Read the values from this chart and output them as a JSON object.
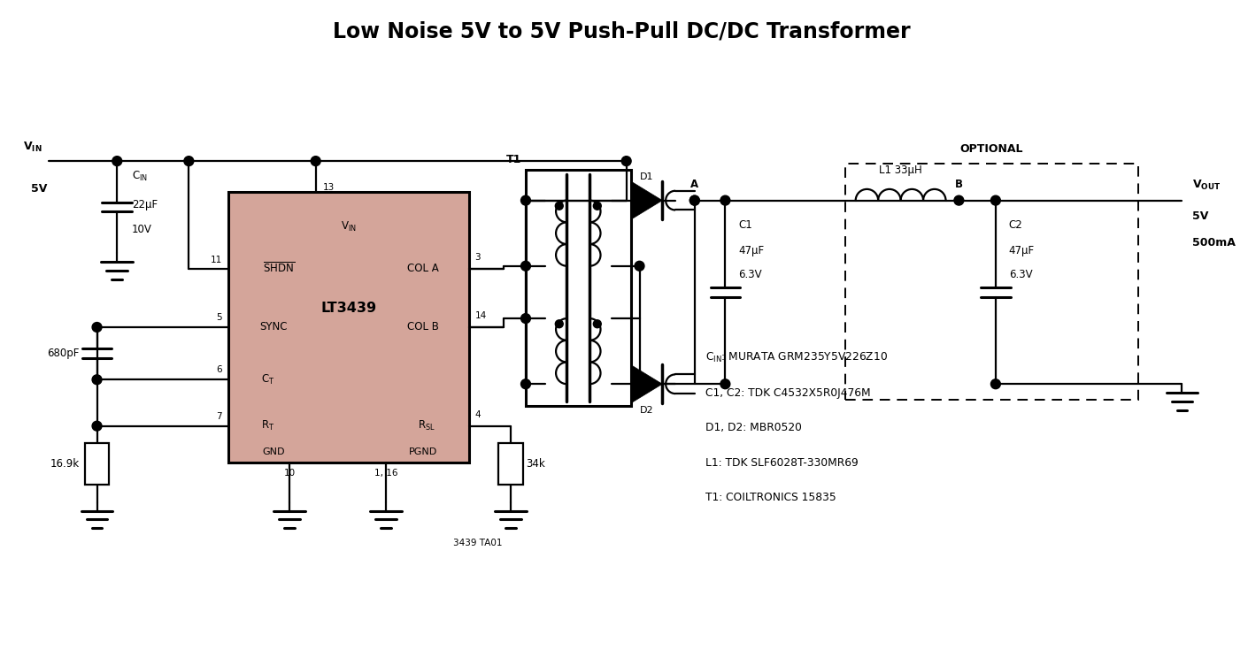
{
  "title": "Low Noise 5V to 5V Push-Pull DC/DC Transformer",
  "title_fontsize": 17,
  "bg_color": "#ffffff",
  "ic_fill_color": "#d4a59a",
  "ic_label": "LT3439",
  "bom_lines": [
    "Cᴵₙ: MURATA GRM235Y5V226Z10",
    "C1, C2: TDK C4532X5R0J476M",
    "D1, D2: MBR0520",
    "L1: TDK SLF6028T-330MR69",
    "T1: COILTRONICS 15835"
  ],
  "note": "3439 TA01",
  "lw": 1.6,
  "lw_thick": 2.2,
  "dot_r": 0.055,
  "fs": 8.5,
  "fs_title": 17,
  "fs_label": 9,
  "fs_pin": 7.5
}
